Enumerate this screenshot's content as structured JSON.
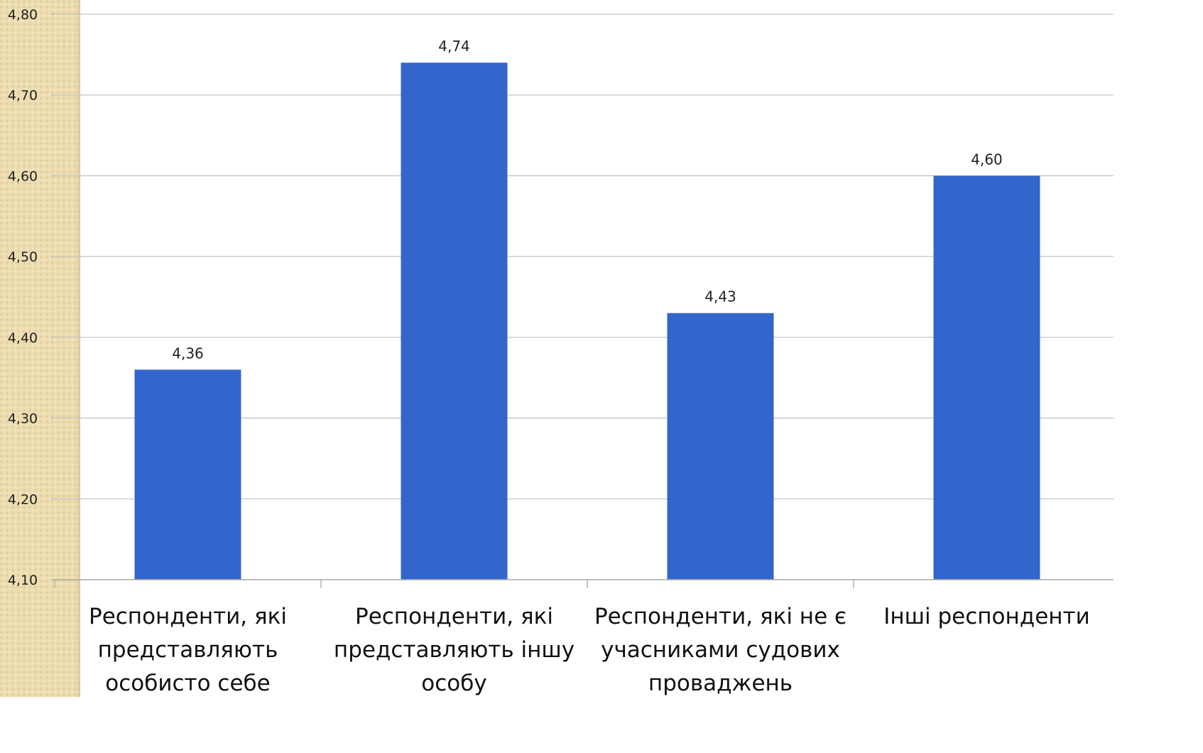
{
  "chart_data": {
    "type": "bar",
    "title": "",
    "xlabel": "",
    "ylabel": "",
    "ylim": [
      4.1,
      4.8
    ],
    "yticks": [
      "4,10",
      "4,20",
      "4,30",
      "4,40",
      "4,50",
      "4,60",
      "4,70",
      "4,80"
    ],
    "grid": true,
    "legend": "none",
    "bar_color": "#3366cc",
    "categories": [
      [
        "Респонденти, які",
        "представляють",
        "особисто себе"
      ],
      [
        "Респонденти, які",
        "представляють іншу",
        "особу"
      ],
      [
        "Респонденти, які не є",
        "учасниками судових",
        "проваджень"
      ],
      [
        "Інші респонденти"
      ]
    ],
    "series": [
      {
        "values": [
          4.36,
          4.74,
          4.43,
          4.6
        ],
        "labels": [
          "4,36",
          "4,74",
          "4,43",
          "4,60"
        ]
      }
    ]
  }
}
